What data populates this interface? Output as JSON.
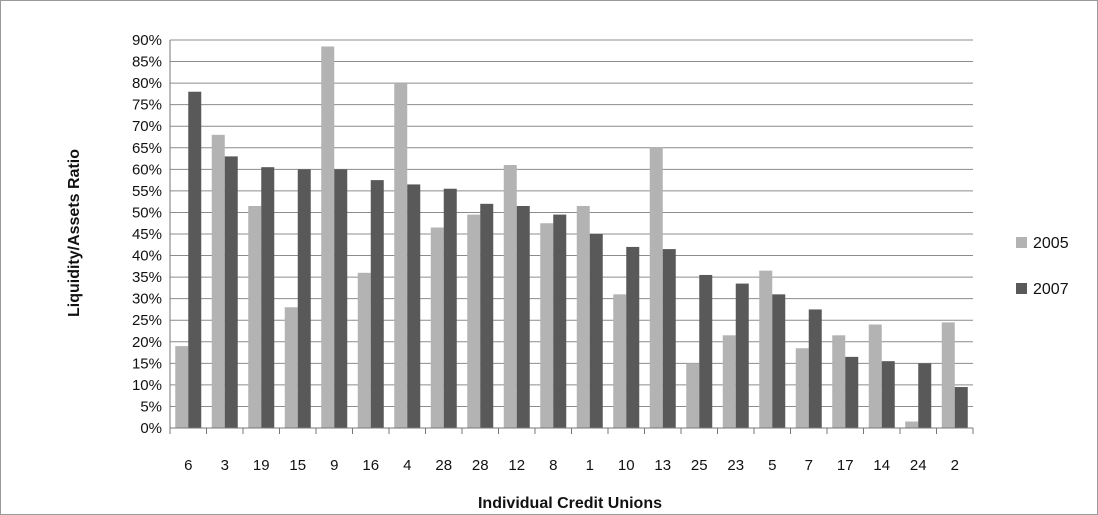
{
  "chart_data": {
    "type": "bar",
    "title": "",
    "xlabel": "Individual Credit Unions",
    "ylabel": "Liquidity/Assets Ratio",
    "ylim": [
      0,
      90
    ],
    "ytick_step": 5,
    "ytick_labels": [
      "0%",
      "5%",
      "10%",
      "15%",
      "20%",
      "25%",
      "30%",
      "35%",
      "40%",
      "45%",
      "50%",
      "55%",
      "60%",
      "65%",
      "70%",
      "75%",
      "80%",
      "85%",
      "90%"
    ],
    "grid": true,
    "legend_position": "right",
    "categories": [
      "6",
      "3",
      "19",
      "15",
      "9",
      "16",
      "4",
      "28",
      "28",
      "12",
      "8",
      "1",
      "10",
      "13",
      "25",
      "23",
      "5",
      "7",
      "17",
      "14",
      "24",
      "2"
    ],
    "series": [
      {
        "name": "2005",
        "color": "#b3b3b3",
        "values": [
          19,
          68,
          51.5,
          28,
          88.5,
          36,
          80,
          46.5,
          49.5,
          61,
          47.5,
          51.5,
          31,
          65,
          15,
          21.5,
          36.5,
          18.5,
          21.5,
          24,
          1.5,
          24.5
        ]
      },
      {
        "name": "2007",
        "color": "#595959",
        "values": [
          78,
          63,
          60.5,
          60,
          60,
          57.5,
          56.5,
          55.5,
          52,
          51.5,
          49.5,
          45,
          42,
          41.5,
          35.5,
          33.5,
          31,
          27.5,
          16.5,
          15.5,
          15,
          9.5
        ]
      }
    ]
  }
}
